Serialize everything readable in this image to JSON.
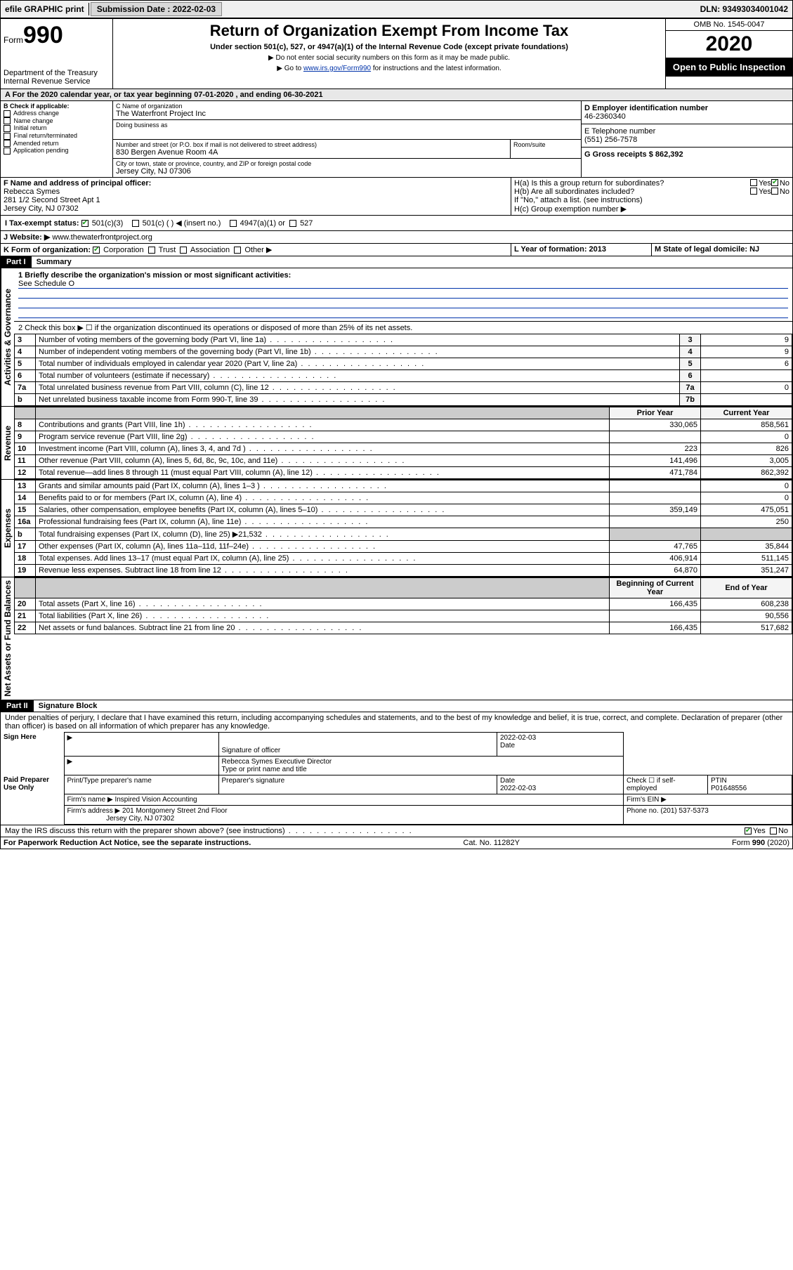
{
  "topbar": {
    "efile_label": "efile GRAPHIC print",
    "submission_label": "Submission Date : 2022-02-03",
    "dln_label": "DLN: 93493034001042"
  },
  "header": {
    "form_word": "Form",
    "form_num": "990",
    "dept": "Department of the Treasury",
    "irs": "Internal Revenue Service",
    "title": "Return of Organization Exempt From Income Tax",
    "sub": "Under section 501(c), 527, or 4947(a)(1) of the Internal Revenue Code (except private foundations)",
    "note1": "▶ Do not enter social security numbers on this form as it may be made public.",
    "note2_pre": "▶ Go to ",
    "note2_link": "www.irs.gov/Form990",
    "note2_post": " for instructions and the latest information.",
    "omb": "OMB No. 1545-0047",
    "year": "2020",
    "open": "Open to Public Inspection"
  },
  "period": "A For the 2020 calendar year, or tax year beginning 07-01-2020    , and ending 06-30-2021",
  "boxB": {
    "label": "B Check if applicable:",
    "items": [
      "Address change",
      "Name change",
      "Initial return",
      "Final return/terminated",
      "Amended return",
      "Application pending"
    ]
  },
  "boxC": {
    "name_label": "C Name of organization",
    "name": "The Waterfront Project Inc",
    "dba_label": "Doing business as",
    "addr_label": "Number and street (or P.O. box if mail is not delivered to street address)",
    "room_label": "Room/suite",
    "addr": "830 Bergen Avenue Room 4A",
    "city_label": "City or town, state or province, country, and ZIP or foreign postal code",
    "city": "Jersey City, NJ  07306"
  },
  "boxD": {
    "label": "D Employer identification number",
    "val": "46-2360340"
  },
  "boxE": {
    "label": "E Telephone number",
    "val": "(551) 256-7578"
  },
  "boxG": {
    "label": "G Gross receipts $ 862,392"
  },
  "boxF": {
    "label": "F Name and address of principal officer:",
    "name": "Rebecca Symes",
    "addr1": "281 1/2 Second Street Apt 1",
    "addr2": "Jersey City, NJ  07302"
  },
  "boxH": {
    "ha": "H(a)  Is this a group return for subordinates?",
    "hb": "H(b)  Are all subordinates included?",
    "hnote": "If \"No,\" attach a list. (see instructions)",
    "hc": "H(c)  Group exemption number ▶",
    "yes": "Yes",
    "no": "No"
  },
  "boxI": {
    "label": "I  Tax-exempt status:",
    "c3": "501(c)(3)",
    "c": "501(c) (   ) ◀ (insert no.)",
    "a1": "4947(a)(1) or",
    "s527": "527"
  },
  "boxJ": {
    "label": "J  Website: ▶",
    "val": "www.thewaterfrontproject.org"
  },
  "boxK": {
    "label": "K Form of organization:",
    "corp": "Corporation",
    "trust": "Trust",
    "assoc": "Association",
    "other": "Other ▶"
  },
  "boxL": {
    "label": "L Year of formation: 2013"
  },
  "boxM": {
    "label": "M State of legal domicile: NJ"
  },
  "part1": {
    "hdr": "Part I",
    "title": "Summary",
    "line1": "1  Briefly describe the organization's mission or most significant activities:",
    "line1val": "See Schedule O",
    "line2": "2   Check this box ▶ ☐  if the organization discontinued its operations or disposed of more than 25% of its net assets.",
    "vlabel_gov": "Activities & Governance",
    "vlabel_rev": "Revenue",
    "vlabel_exp": "Expenses",
    "vlabel_net": "Net Assets or Fund Balances",
    "prior": "Prior Year",
    "current": "Current Year",
    "begin": "Beginning of Current Year",
    "end": "End of Year",
    "rows_top": [
      {
        "n": "3",
        "t": "Number of voting members of the governing body (Part VI, line 1a)",
        "k": "3",
        "v": "9"
      },
      {
        "n": "4",
        "t": "Number of independent voting members of the governing body (Part VI, line 1b)",
        "k": "4",
        "v": "9"
      },
      {
        "n": "5",
        "t": "Total number of individuals employed in calendar year 2020 (Part V, line 2a)",
        "k": "5",
        "v": "6"
      },
      {
        "n": "6",
        "t": "Total number of volunteers (estimate if necessary)",
        "k": "6",
        "v": ""
      },
      {
        "n": "7a",
        "t": "Total unrelated business revenue from Part VIII, column (C), line 12",
        "k": "7a",
        "v": "0"
      },
      {
        "n": "b",
        "t": "Net unrelated business taxable income from Form 990-T, line 39",
        "k": "7b",
        "v": ""
      }
    ],
    "rows_rev": [
      {
        "n": "8",
        "t": "Contributions and grants (Part VIII, line 1h)",
        "p": "330,065",
        "c": "858,561"
      },
      {
        "n": "9",
        "t": "Program service revenue (Part VIII, line 2g)",
        "p": "",
        "c": "0"
      },
      {
        "n": "10",
        "t": "Investment income (Part VIII, column (A), lines 3, 4, and 7d )",
        "p": "223",
        "c": "826"
      },
      {
        "n": "11",
        "t": "Other revenue (Part VIII, column (A), lines 5, 6d, 8c, 9c, 10c, and 11e)",
        "p": "141,496",
        "c": "3,005"
      },
      {
        "n": "12",
        "t": "Total revenue—add lines 8 through 11 (must equal Part VIII, column (A), line 12)",
        "p": "471,784",
        "c": "862,392"
      }
    ],
    "rows_exp": [
      {
        "n": "13",
        "t": "Grants and similar amounts paid (Part IX, column (A), lines 1–3 )",
        "p": "",
        "c": "0"
      },
      {
        "n": "14",
        "t": "Benefits paid to or for members (Part IX, column (A), line 4)",
        "p": "",
        "c": "0"
      },
      {
        "n": "15",
        "t": "Salaries, other compensation, employee benefits (Part IX, column (A), lines 5–10)",
        "p": "359,149",
        "c": "475,051"
      },
      {
        "n": "16a",
        "t": "Professional fundraising fees (Part IX, column (A), line 11e)",
        "p": "",
        "c": "250"
      },
      {
        "n": "b",
        "t": "Total fundraising expenses (Part IX, column (D), line 25) ▶21,532",
        "p": "SHADE",
        "c": "SHADE"
      },
      {
        "n": "17",
        "t": "Other expenses (Part IX, column (A), lines 11a–11d, 11f–24e)",
        "p": "47,765",
        "c": "35,844"
      },
      {
        "n": "18",
        "t": "Total expenses. Add lines 13–17 (must equal Part IX, column (A), line 25)",
        "p": "406,914",
        "c": "511,145"
      },
      {
        "n": "19",
        "t": "Revenue less expenses. Subtract line 18 from line 12",
        "p": "64,870",
        "c": "351,247"
      }
    ],
    "rows_net": [
      {
        "n": "20",
        "t": "Total assets (Part X, line 16)",
        "p": "166,435",
        "c": "608,238"
      },
      {
        "n": "21",
        "t": "Total liabilities (Part X, line 26)",
        "p": "",
        "c": "90,556"
      },
      {
        "n": "22",
        "t": "Net assets or fund balances. Subtract line 21 from line 20",
        "p": "166,435",
        "c": "517,682"
      }
    ]
  },
  "part2": {
    "hdr": "Part II",
    "title": "Signature Block",
    "decl": "Under penalties of perjury, I declare that I have examined this return, including accompanying schedules and statements, and to the best of my knowledge and belief, it is true, correct, and complete. Declaration of preparer (other than officer) is based on all information of which preparer has any knowledge.",
    "sign_here": "Sign Here",
    "sig_officer": "Signature of officer",
    "sig_date": "Date",
    "sig_dateval": "2022-02-03",
    "sig_name": "Rebecca Symes  Executive Director",
    "sig_type": "Type or print name and title",
    "paid": "Paid Preparer Use Only",
    "p_name_h": "Print/Type preparer's name",
    "p_sig_h": "Preparer's signature",
    "p_date_h": "Date",
    "p_date": "2022-02-03",
    "p_check": "Check ☐ if self-employed",
    "p_ptin_h": "PTIN",
    "p_ptin": "P01648556",
    "firm_name_h": "Firm's name   ▶",
    "firm_name": "Inspired Vision Accounting",
    "firm_ein_h": "Firm's EIN ▶",
    "firm_addr_h": "Firm's address ▶",
    "firm_addr1": "201 Montgomery Street 2nd Floor",
    "firm_addr2": "Jersey City, NJ  07302",
    "firm_phone_h": "Phone no. (201) 537-5373",
    "discuss": "May the IRS discuss this return with the preparer shown above? (see instructions)",
    "yes": "Yes",
    "no": "No"
  },
  "footer": {
    "left": "For Paperwork Reduction Act Notice, see the separate instructions.",
    "mid": "Cat. No. 11282Y",
    "right": "Form 990 (2020)"
  }
}
